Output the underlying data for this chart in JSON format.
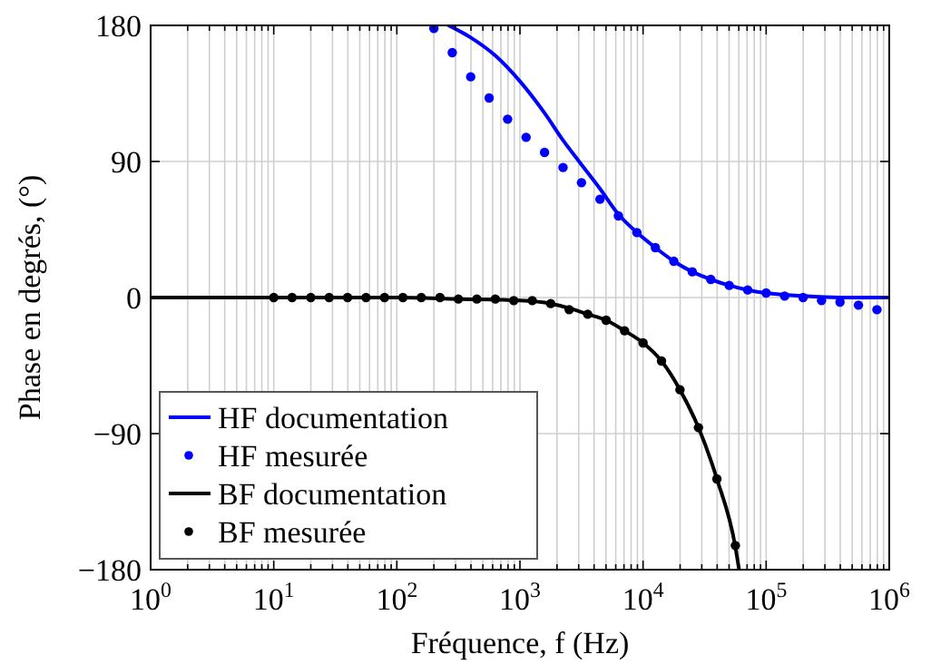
{
  "chart_data": {
    "type": "line",
    "xlabel": "Fréquence, f (Hz)",
    "ylabel": "Phase en degrés, (°)",
    "log": "x",
    "grid": true,
    "legend": "bottom left",
    "xlim": [
      1,
      1000000
    ],
    "ylim": [
      -180,
      180
    ],
    "xticks": [
      {
        "value": 1,
        "label": "10$^{0}$"
      },
      {
        "value": 2,
        "label": null
      },
      {
        "value": 3,
        "label": null
      },
      {
        "value": 4,
        "label": null
      },
      {
        "value": 5,
        "label": null
      },
      {
        "value": 6,
        "label": null
      },
      {
        "value": 7,
        "label": null
      },
      {
        "value": 8,
        "label": null
      },
      {
        "value": 9,
        "label": null
      },
      {
        "value": 10,
        "label": "10$^{1}$"
      },
      {
        "value": 20,
        "label": null
      },
      {
        "value": 30,
        "label": null
      },
      {
        "value": 40,
        "label": null
      },
      {
        "value": 50,
        "label": null
      },
      {
        "value": 60,
        "label": null
      },
      {
        "value": 70,
        "label": null
      },
      {
        "value": 80,
        "label": null
      },
      {
        "value": 90,
        "label": null
      },
      {
        "value": 100,
        "label": "10$^{2}$"
      },
      {
        "value": 200,
        "label": null
      },
      {
        "value": 300,
        "label": null
      },
      {
        "value": 400,
        "label": null
      },
      {
        "value": 500,
        "label": null
      },
      {
        "value": 600,
        "label": null
      },
      {
        "value": 700,
        "label": null
      },
      {
        "value": 800,
        "label": null
      },
      {
        "value": 900,
        "label": null
      },
      {
        "value": 1000,
        "label": "10$^{3}$"
      },
      {
        "value": 2000,
        "label": null
      },
      {
        "value": 3000,
        "label": null
      },
      {
        "value": 4000,
        "label": null
      },
      {
        "value": 5000,
        "label": null
      },
      {
        "value": 6000,
        "label": null
      },
      {
        "value": 7000,
        "label": null
      },
      {
        "value": 8000,
        "label": null
      },
      {
        "value": 9000,
        "label": null
      },
      {
        "value": 10000,
        "label": "10$^{4}$"
      },
      {
        "value": 20000,
        "label": null
      },
      {
        "value": 30000,
        "label": null
      },
      {
        "value": 40000,
        "label": null
      },
      {
        "value": 50000,
        "label": null
      },
      {
        "value": 60000,
        "label": null
      },
      {
        "value": 70000,
        "label": null
      },
      {
        "value": 80000,
        "label": null
      },
      {
        "value": 90000,
        "label": null
      },
      {
        "value": 100000,
        "label": "10$^{5}$"
      },
      {
        "value": 200000,
        "label": null
      },
      {
        "value": 300000,
        "label": null
      },
      {
        "value": 400000,
        "label": null
      },
      {
        "value": 500000,
        "label": null
      },
      {
        "value": 600000,
        "label": null
      },
      {
        "value": 700000,
        "label": null
      },
      {
        "value": 800000,
        "label": null
      },
      {
        "value": 900000,
        "label": null
      },
      {
        "value": 1000000,
        "label": "10$^{6}$"
      }
    ],
    "yticks": [
      {
        "value": -180,
        "label": "−180"
      },
      {
        "value": -90,
        "label": "−90"
      },
      0,
      90,
      180
    ],
    "series": [
      {
        "name": "HF documentation",
        "marker": "none",
        "color": "#0000ff",
        "x": [
          263,
          398,
          631,
          1000,
          1585,
          2239,
          3020,
          4467,
          6310,
          8913,
          12589,
          17783,
          25119,
          35481,
          50119,
          70795,
          100000,
          199526,
          398107,
          1000000
        ],
        "values": [
          180,
          172,
          160,
          143,
          122,
          104,
          90,
          72,
          55,
          43,
          33,
          24,
          17,
          12,
          8,
          5,
          3,
          1,
          0,
          0
        ]
      },
      {
        "name": "HF mesurée",
        "type": "scatter",
        "marker": "circle",
        "color": "#0000ff",
        "x": [
          200,
          282,
          398,
          562,
          794,
          1122,
          1585,
          2239,
          3162,
          4467,
          6310,
          8913,
          12589,
          17783,
          25119,
          35481,
          50119,
          70795,
          100000,
          141254,
          199526,
          281838,
          398107,
          562341,
          794328
        ],
        "values": [
          178,
          162,
          146,
          132,
          118,
          106,
          96,
          86,
          76,
          65,
          54,
          43,
          33,
          24,
          17,
          12,
          8,
          5,
          3,
          1,
          0,
          -2,
          -3,
          -5,
          -8
        ]
      },
      {
        "name": "BF documentation",
        "marker": "none",
        "color": "#000000",
        "x": [
          1,
          10,
          100,
          316,
          1000,
          1778,
          2512,
          3548,
          5012,
          7079,
          10000,
          14125,
          19953,
          28184,
          39811,
          56234,
          60256
        ],
        "values": [
          0,
          0,
          0,
          -1,
          -2,
          -4,
          -7,
          -11,
          -15,
          -22,
          -30,
          -42,
          -61,
          -86,
          -120,
          -165,
          -180
        ]
      },
      {
        "name": "BF mesurée",
        "type": "scatter",
        "marker": "circle",
        "color": "#000000",
        "x": [
          10,
          14.1,
          20,
          28.2,
          39.8,
          56.2,
          79.4,
          112,
          158,
          224,
          316,
          447,
          631,
          891,
          1259,
          1778,
          2512,
          3548,
          5012,
          7079,
          10000,
          14125,
          19953,
          28184,
          39811,
          56234
        ],
        "values": [
          0,
          0,
          0,
          0,
          0,
          0,
          0,
          0,
          0,
          0,
          -1,
          -1,
          -1,
          -2,
          -2,
          -4,
          -8,
          -11,
          -15,
          -22,
          -30,
          -42,
          -61,
          -86,
          -120,
          -164
        ]
      }
    ]
  }
}
